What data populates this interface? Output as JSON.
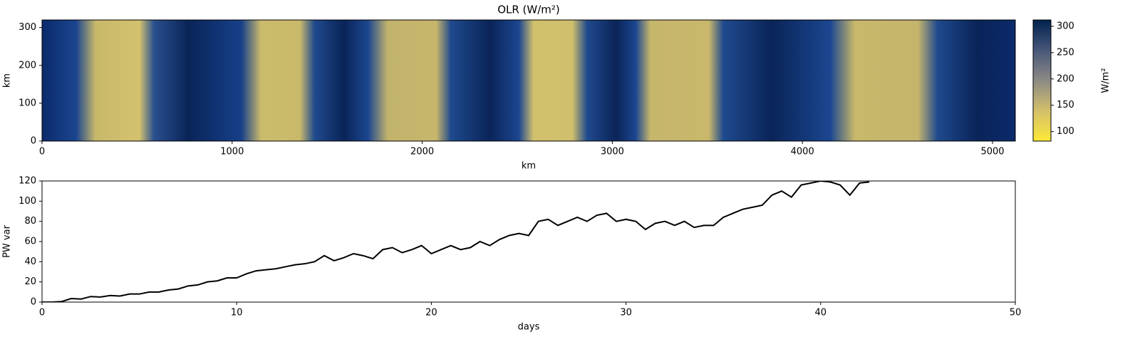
{
  "chart_data": [
    {
      "type": "heatmap",
      "title": "OLR (W/m²)",
      "xlabel": "km",
      "ylabel": "km",
      "xlim": [
        0,
        5120
      ],
      "xticks": [
        0,
        1000,
        2000,
        3000,
        4000,
        5000
      ],
      "ylim": [
        0,
        320
      ],
      "yticks": [
        0,
        100,
        200,
        300
      ],
      "colorbar": {
        "label": "W/m²",
        "lim": [
          82,
          312
        ],
        "ticks": [
          100,
          150,
          200,
          250,
          300
        ]
      }
    },
    {
      "type": "line",
      "xlabel": "days",
      "ylabel": "PW var",
      "color": "#000000",
      "xlim": [
        0,
        50
      ],
      "xticks": [
        0,
        10,
        20,
        30,
        40,
        50
      ],
      "ylim": [
        0,
        120
      ],
      "yticks": [
        0,
        20,
        40,
        60,
        80,
        100,
        120
      ],
      "x": [
        0,
        0.5,
        1,
        1.5,
        2,
        2.5,
        3,
        3.5,
        4,
        4.5,
        5,
        5.5,
        6,
        6.5,
        7,
        7.5,
        8,
        8.5,
        9,
        9.5,
        10,
        10.5,
        11,
        11.5,
        12,
        12.5,
        13,
        13.5,
        14,
        14.5,
        15,
        15.5,
        16,
        16.5,
        17,
        17.5,
        18,
        18.5,
        19,
        19.5,
        20,
        20.5,
        21,
        21.5,
        22,
        22.5,
        23,
        23.5,
        24,
        24.5,
        25,
        25.5,
        26,
        26.5,
        27,
        27.5,
        28,
        28.5,
        29,
        29.5,
        30,
        30.5,
        31,
        31.5,
        32,
        32.5,
        33,
        33.5,
        34,
        34.5,
        35,
        35.5,
        36,
        36.5,
        37,
        37.5,
        38,
        38.5,
        39,
        39.5,
        40,
        40.5,
        41,
        41.5,
        42,
        42.5
      ],
      "values": [
        0,
        0,
        0.5,
        3.5,
        3,
        5.5,
        5,
        6.5,
        6,
        8,
        8,
        10,
        10,
        12,
        13,
        16,
        17,
        20,
        21,
        24,
        24,
        28,
        31,
        32,
        33,
        35,
        37,
        38,
        40,
        46,
        41,
        44,
        48,
        46,
        43,
        52,
        54,
        49,
        52,
        56,
        48,
        52,
        56,
        52,
        54,
        60,
        56,
        62,
        66,
        68,
        66,
        80,
        82,
        76,
        80,
        84,
        80,
        86,
        88,
        80,
        82,
        80,
        72,
        78,
        80,
        76,
        80,
        74,
        76,
        76,
        84,
        88,
        92,
        94,
        96,
        106,
        110,
        104,
        116,
        118,
        120,
        119,
        116,
        106,
        118,
        119
      ]
    }
  ]
}
